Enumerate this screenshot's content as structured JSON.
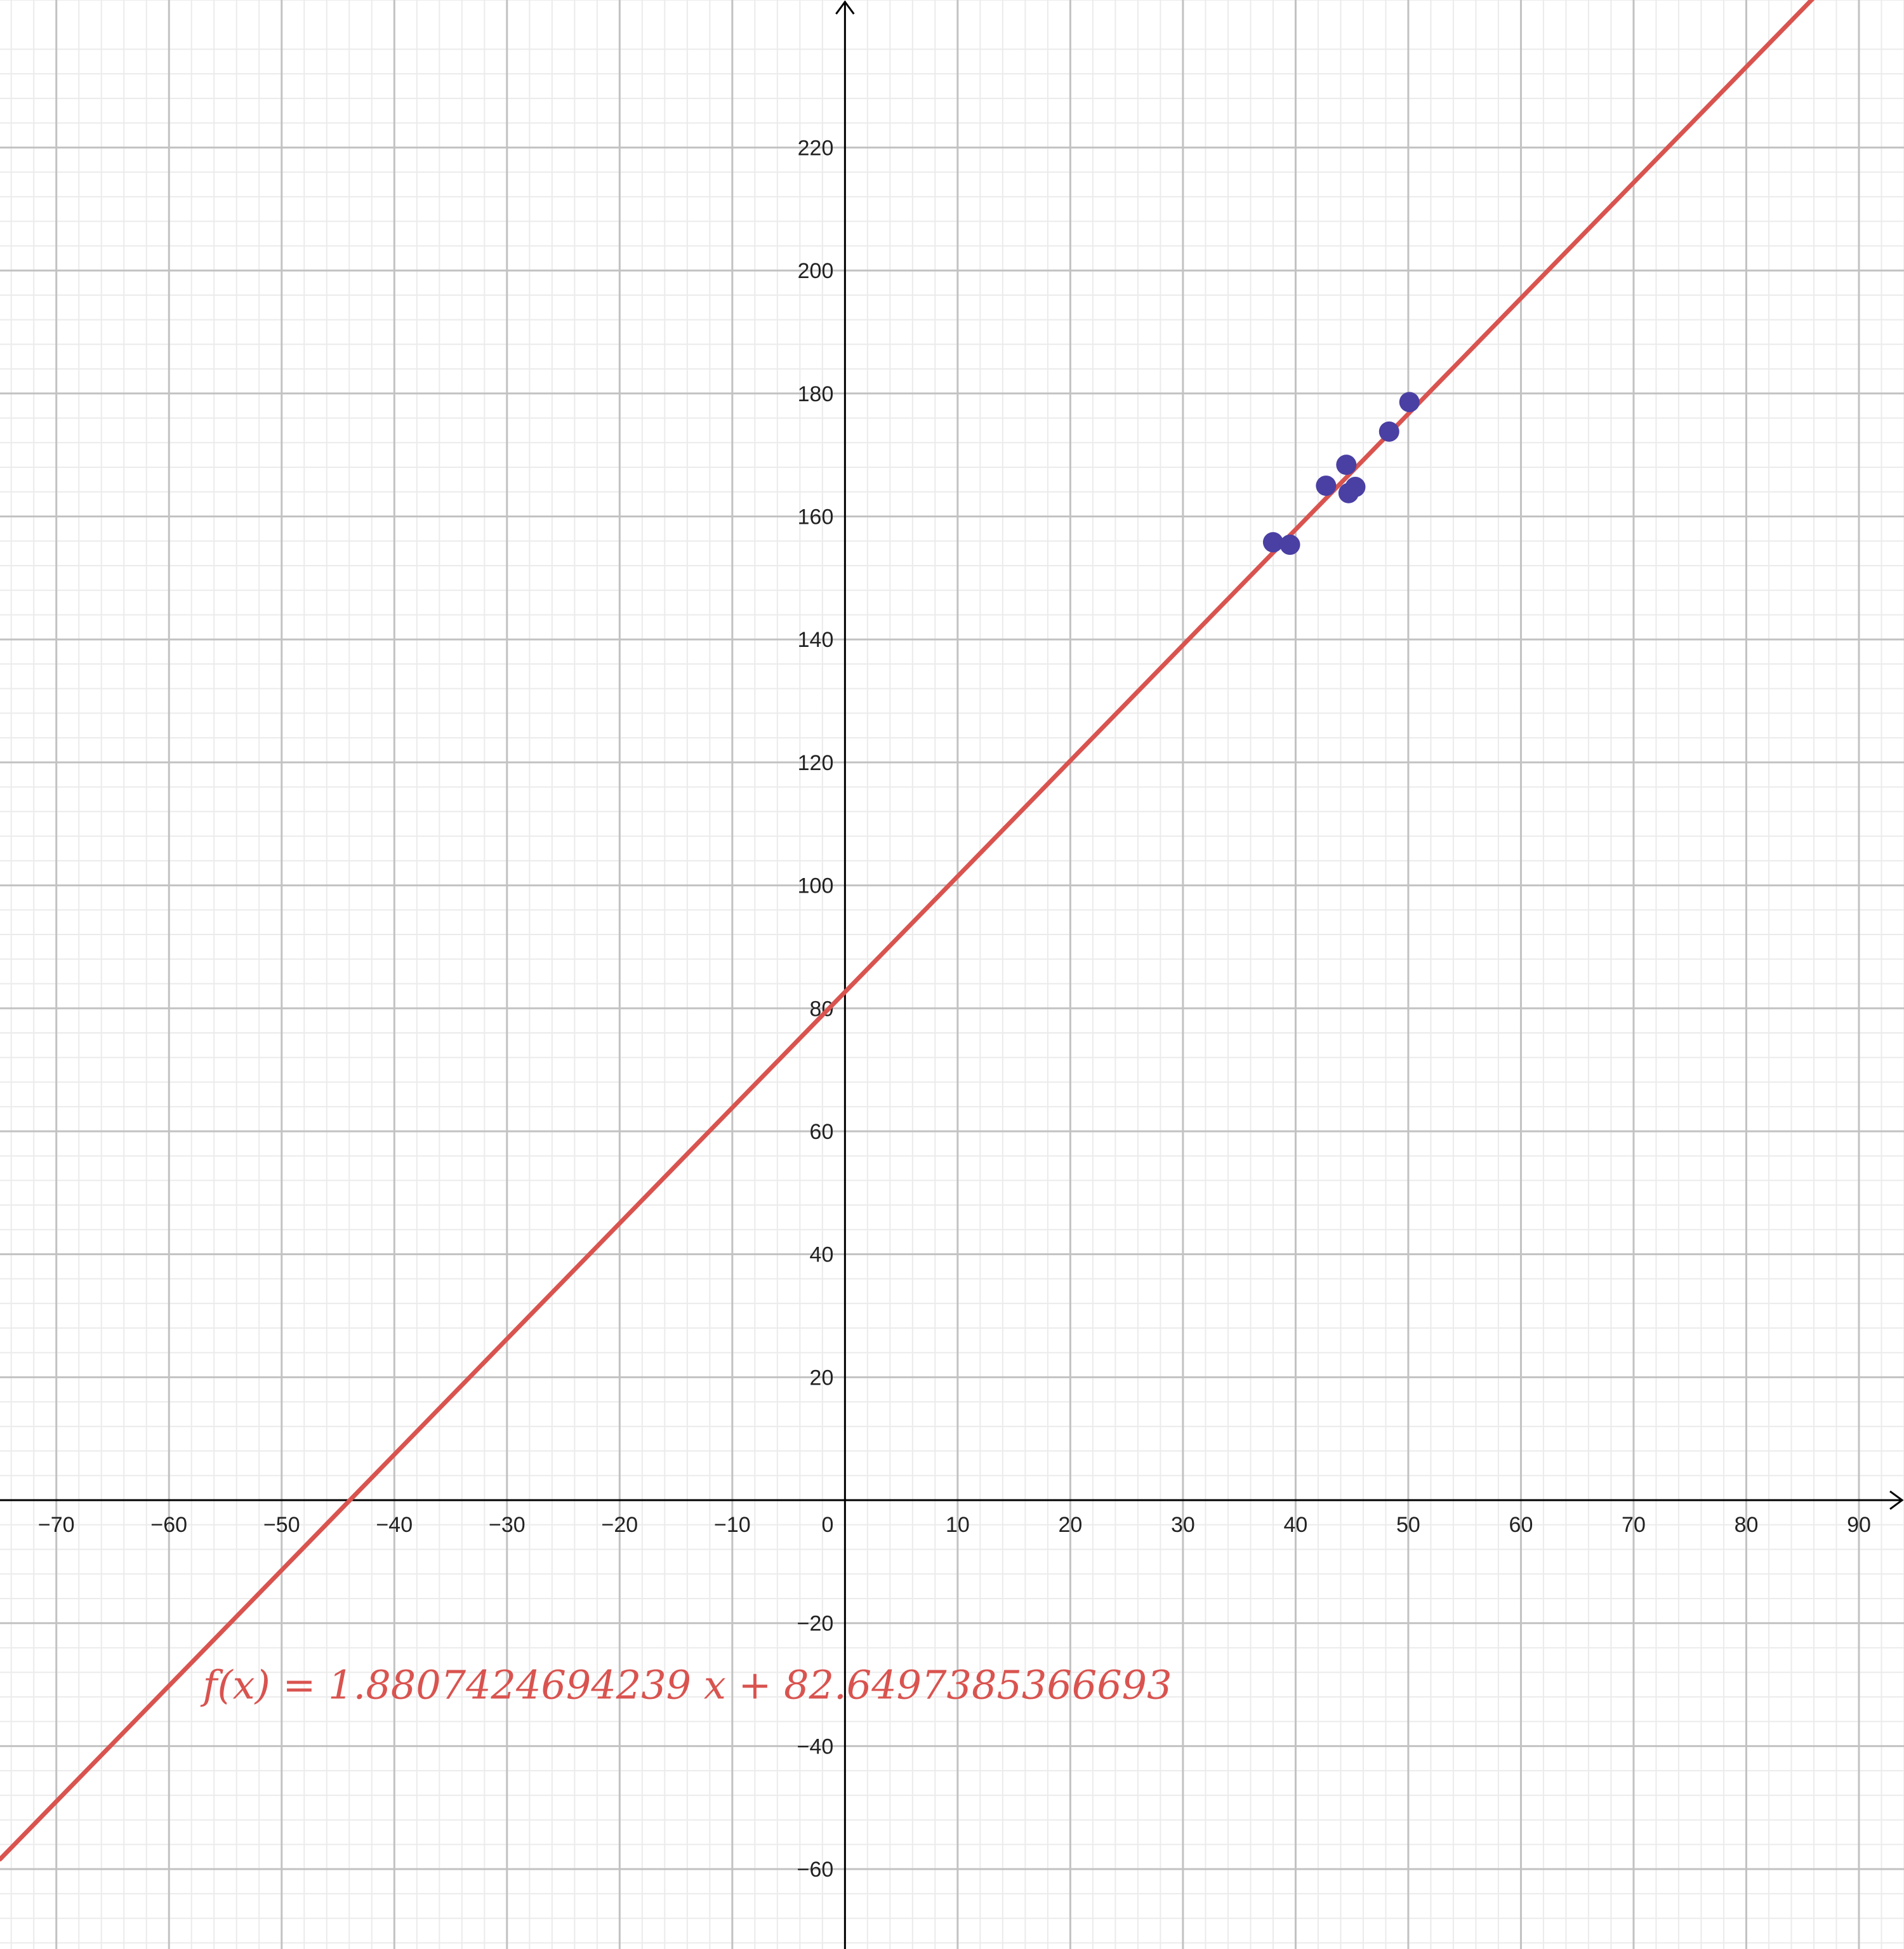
{
  "chart_data": {
    "type": "scatter",
    "title": "",
    "xlabel": "",
    "ylabel": "",
    "xlim": [
      -75,
      94
    ],
    "ylim": [
      -73,
      244
    ],
    "grid": true,
    "x_ticks": [
      -70,
      -60,
      -50,
      -40,
      -30,
      -20,
      -10,
      0,
      10,
      20,
      30,
      40,
      50,
      60,
      70,
      80,
      90
    ],
    "y_ticks": [
      -60,
      -40,
      -20,
      20,
      40,
      60,
      80,
      100,
      120,
      140,
      160,
      180,
      200,
      220
    ],
    "x_tick_labels": [
      "−70",
      "−60",
      "−50",
      "−40",
      "−30",
      "−20",
      "−10",
      "0",
      "10",
      "20",
      "30",
      "40",
      "50",
      "60",
      "70",
      "80",
      "90"
    ],
    "y_tick_labels": [
      "−60",
      "−40",
      "−20",
      "20",
      "40",
      "60",
      "80",
      "100",
      "120",
      "140",
      "160",
      "180",
      "200",
      "220"
    ],
    "series": [
      {
        "type": "scatter",
        "color": "#4a3fa3",
        "points": [
          {
            "x": 38.0,
            "y": 155.8
          },
          {
            "x": 39.5,
            "y": 155.4
          },
          {
            "x": 42.7,
            "y": 165.0
          },
          {
            "x": 44.5,
            "y": 168.4
          },
          {
            "x": 44.7,
            "y": 163.8
          },
          {
            "x": 45.3,
            "y": 164.8
          },
          {
            "x": 48.3,
            "y": 173.8
          },
          {
            "x": 50.1,
            "y": 178.6
          }
        ]
      },
      {
        "type": "line",
        "color": "#d9534f",
        "slope": 1.8807424694239,
        "intercept": 82.6497385366693,
        "label": "f(x)  =  1.8807424694239 x + 82.6497385366693",
        "label_anchor": {
          "x": -57,
          "y": -30
        }
      }
    ]
  }
}
